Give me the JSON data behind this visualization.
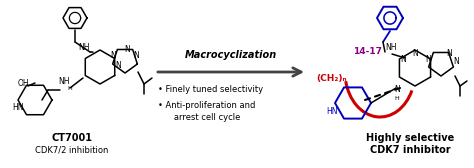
{
  "bg_color": "#ffffff",
  "fig_width": 4.74,
  "fig_height": 1.68,
  "dpi": 100,
  "arrow_label": "Macrocyclization",
  "bullet1": "• Finely tuned selectivity",
  "bullet2": "• Anti-proliferation and",
  "bullet3": "   arrest cell cycle",
  "left_title": "CT7001",
  "left_subtitle": "CDK7/2 inhibition",
  "right_title": "Highly selective",
  "right_subtitle": "CDK7 inhibitor",
  "ch2n_label": "(CH₂)ₙ",
  "chain_range": "14-17",
  "text_color": "#000000",
  "red_color": "#cc0000",
  "blue_color": "#0000bb",
  "purple_color": "#880088",
  "arrow_color": "#444444",
  "lw": 1.1
}
